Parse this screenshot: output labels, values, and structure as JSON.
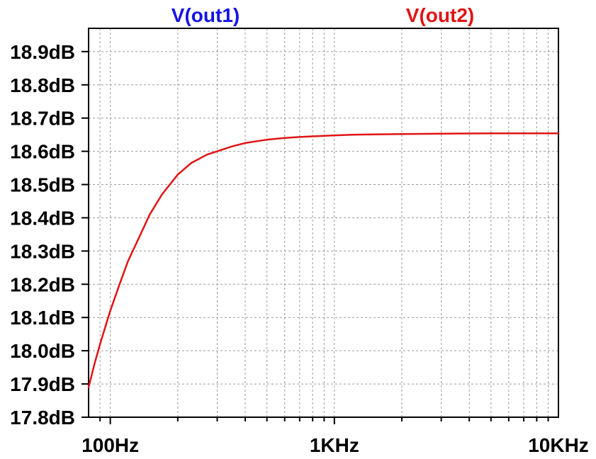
{
  "chart_data": {
    "type": "line",
    "xscale": "log",
    "xlim": [
      80,
      10000
    ],
    "ylim": [
      17.8,
      18.97
    ],
    "grid": true,
    "x_ticks": [
      {
        "value": 100,
        "label": "100Hz"
      },
      {
        "value": 1000,
        "label": "1KHz"
      },
      {
        "value": 10000,
        "label": "10KHz"
      }
    ],
    "y_ticks": [
      {
        "value": 17.8,
        "label": "17.8dB"
      },
      {
        "value": 17.9,
        "label": "17.9dB"
      },
      {
        "value": 18.0,
        "label": "18.0dB"
      },
      {
        "value": 18.1,
        "label": "18.1dB"
      },
      {
        "value": 18.2,
        "label": "18.2dB"
      },
      {
        "value": 18.3,
        "label": "18.3dB"
      },
      {
        "value": 18.4,
        "label": "18.4dB"
      },
      {
        "value": 18.5,
        "label": "18.5dB"
      },
      {
        "value": 18.6,
        "label": "18.6dB"
      },
      {
        "value": 18.7,
        "label": "18.7dB"
      },
      {
        "value": 18.8,
        "label": "18.8dB"
      },
      {
        "value": 18.9,
        "label": "18.9dB"
      }
    ],
    "legend": [
      {
        "name": "V(out1)",
        "color": "#1414e6"
      },
      {
        "name": "V(out2)",
        "color": "#e01414"
      }
    ],
    "series": [
      {
        "name": "V(out2)",
        "color": "#e01414",
        "x": [
          80,
          85,
          90,
          100,
          110,
          120,
          130,
          150,
          170,
          200,
          230,
          270,
          300,
          350,
          400,
          500,
          600,
          700,
          800,
          1000,
          1200,
          1500,
          2000,
          3000,
          5000,
          7000,
          10000
        ],
        "y": [
          17.89,
          17.96,
          18.02,
          18.12,
          18.2,
          18.27,
          18.32,
          18.41,
          18.47,
          18.53,
          18.565,
          18.59,
          18.6,
          18.615,
          18.625,
          18.635,
          18.64,
          18.643,
          18.645,
          18.648,
          18.65,
          18.651,
          18.652,
          18.653,
          18.654,
          18.654,
          18.654
        ]
      }
    ]
  }
}
